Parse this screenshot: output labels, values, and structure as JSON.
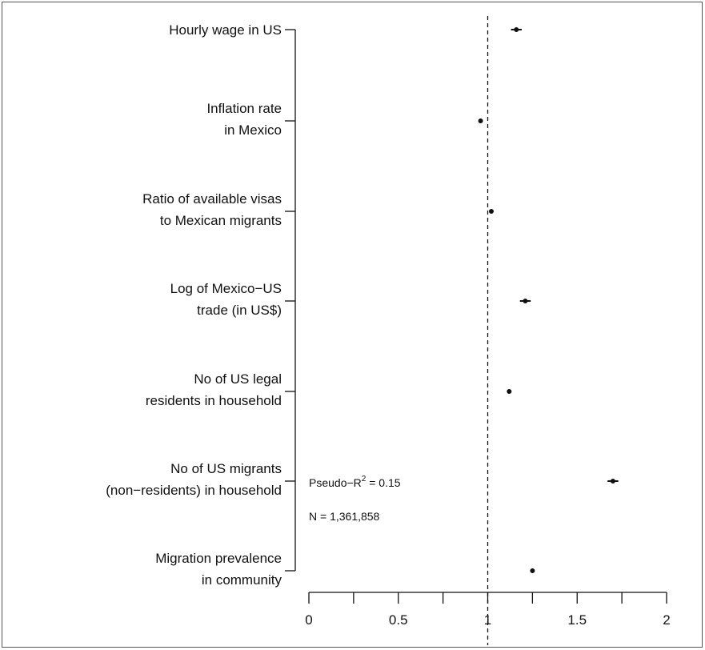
{
  "chart_data": {
    "type": "scatter",
    "title": "",
    "xlabel": "",
    "ylabel": "",
    "xlim": [
      0,
      2
    ],
    "xticks": [
      0,
      0.5,
      1,
      1.5,
      2
    ],
    "xtick_labels": [
      "0",
      "0.5",
      "1",
      "1.5",
      "2"
    ],
    "reference_line": 1,
    "grid": false,
    "categories": [
      [
        "Hourly wage in US"
      ],
      [
        "Inflation rate",
        "in Mexico"
      ],
      [
        "Ratio of available visas",
        "to Mexican migrants"
      ],
      [
        "Log of Mexico−US",
        "trade (in US$)"
      ],
      [
        "No of US legal",
        "residents in household"
      ],
      [
        "No of US migrants",
        "(non−residents) in household"
      ],
      [
        "Migration prevalence",
        "in community"
      ]
    ],
    "estimates": [
      {
        "value": 1.16,
        "lower": 1.13,
        "upper": 1.19
      },
      {
        "value": 0.96,
        "lower": 0.95,
        "upper": 0.97
      },
      {
        "value": 1.02,
        "lower": 1.01,
        "upper": 1.03
      },
      {
        "value": 1.21,
        "lower": 1.18,
        "upper": 1.24
      },
      {
        "value": 1.12,
        "lower": 1.11,
        "upper": 1.13
      },
      {
        "value": 1.7,
        "lower": 1.67,
        "upper": 1.73
      },
      {
        "value": 1.25,
        "lower": 1.24,
        "upper": 1.26
      }
    ],
    "annotations": {
      "pseudo_r2_prefix": "Pseudo−R",
      "pseudo_r2_sup": "2",
      "pseudo_r2_suffix": " = 0.15",
      "n": "N = 1,361,858"
    }
  }
}
